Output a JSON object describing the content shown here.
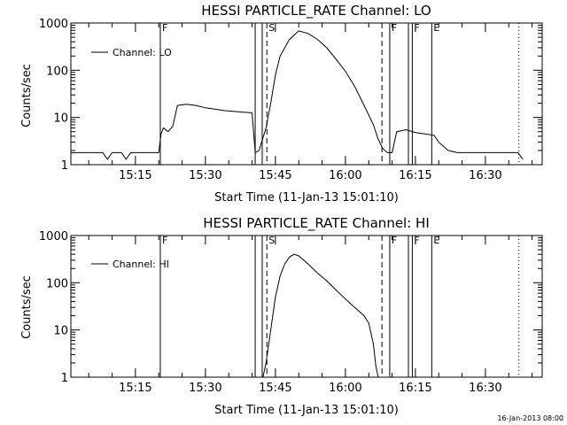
{
  "chart_data": [
    {
      "type": "line",
      "title": "HESSI PARTICLE_RATE Channel: LO",
      "xlabel": "Start Time (11-Jan-13 15:01:10)",
      "ylabel": "Counts/sec",
      "yscale": "log",
      "xlim": [
        "15:01:10",
        "16:42:10"
      ],
      "ylim": [
        1,
        1000
      ],
      "x_ticks": [
        "15:15",
        "15:30",
        "15:45",
        "16:00",
        "16:15",
        "16:30"
      ],
      "y_ticks": [
        "1",
        "10",
        "100",
        "1000"
      ],
      "legend": {
        "placement": "top-left"
      },
      "series": [
        {
          "name": "Channel: LO",
          "x": [
            "15:01:10",
            "15:05:00",
            "15:08:00",
            "15:09:00",
            "15:10:00",
            "15:12:00",
            "15:13:00",
            "15:14:00",
            "15:16:00",
            "15:17:00",
            "15:20:00",
            "15:20:30",
            "15:21:00",
            "15:22:00",
            "15:23:00",
            "15:24:00",
            "15:26:00",
            "15:28:00",
            "15:30:00",
            "15:32:00",
            "15:34:00",
            "15:36:00",
            "15:38:00",
            "15:40:00",
            "15:40:40",
            "15:41:30",
            "15:43:00",
            "15:44:00",
            "15:45:00",
            "15:46:00",
            "15:48:00",
            "15:50:00",
            "15:52:00",
            "15:54:00",
            "15:56:00",
            "15:58:00",
            "16:00:00",
            "16:02:00",
            "16:04:00",
            "16:06:00",
            "16:07:00",
            "16:08:00",
            "16:09:00",
            "16:10:00",
            "16:11:00",
            "16:13:00",
            "16:15:00",
            "16:17:00",
            "16:19:00",
            "16:20:00",
            "16:22:00",
            "16:24:00",
            "16:26:00",
            "16:30:00",
            "16:35:00",
            "16:37:00",
            "16:38:00"
          ],
          "y": [
            1.8,
            1.8,
            1.8,
            1.3,
            1.8,
            1.8,
            1.3,
            1.8,
            1.8,
            1.8,
            1.8,
            4.5,
            6,
            5,
            6.5,
            18,
            19,
            18,
            16,
            15,
            14,
            13.5,
            13,
            12.5,
            1.8,
            2,
            6,
            20,
            80,
            200,
            450,
            680,
            600,
            450,
            300,
            170,
            95,
            45,
            18,
            7,
            3.5,
            2.2,
            1.8,
            1.8,
            5,
            5.5,
            4.8,
            4.5,
            4.2,
            3,
            2,
            1.8,
            1.8,
            1.8,
            1.8,
            1.8,
            1.3
          ]
        }
      ],
      "markers": {
        "letters": [
          "F",
          "S",
          "F",
          "F",
          "E"
        ],
        "solid": [
          "15:20:20",
          "15:40:40",
          "15:42:10",
          "16:09:30",
          "16:13:30",
          "16:14:20",
          "16:18:30"
        ],
        "dashed": [
          "15:43:10",
          "16:07:50"
        ],
        "dotted": [
          "16:37:10"
        ]
      }
    },
    {
      "type": "line",
      "title": "HESSI PARTICLE_RATE Channel: HI",
      "xlabel": "Start Time (11-Jan-13 15:01:10)",
      "ylabel": "Counts/sec",
      "yscale": "log",
      "xlim": [
        "15:01:10",
        "16:42:10"
      ],
      "ylim": [
        1,
        1000
      ],
      "x_ticks": [
        "15:15",
        "15:30",
        "15:45",
        "16:00",
        "16:15",
        "16:30"
      ],
      "y_ticks": [
        "1",
        "10",
        "100",
        "1000"
      ],
      "legend": {
        "placement": "top-left"
      },
      "series": [
        {
          "name": "Channel: HI",
          "x": [
            "15:42:20",
            "15:43:00",
            "15:44:00",
            "15:45:00",
            "15:46:00",
            "15:47:00",
            "15:48:00",
            "15:49:00",
            "15:50:00",
            "15:52:00",
            "15:54:00",
            "15:56:00",
            "15:58:00",
            "16:00:00",
            "16:02:00",
            "16:04:00",
            "16:05:00",
            "16:06:00",
            "16:06:30",
            "16:07:00"
          ],
          "y": [
            1,
            2,
            10,
            50,
            140,
            250,
            350,
            400,
            370,
            250,
            160,
            110,
            70,
            45,
            30,
            20,
            14,
            5,
            1.8,
            1
          ]
        }
      ],
      "markers": {
        "letters": [
          "F",
          "S",
          "F",
          "F",
          "E"
        ],
        "solid": [
          "15:20:20",
          "15:40:40",
          "15:42:10",
          "16:09:30",
          "16:13:30",
          "16:14:20",
          "16:18:30"
        ],
        "dashed": [
          "15:43:10",
          "16:07:50"
        ],
        "dotted": [
          "16:37:10"
        ]
      }
    }
  ],
  "footer": {
    "stamp": "16-Jan-2013 08:00"
  }
}
